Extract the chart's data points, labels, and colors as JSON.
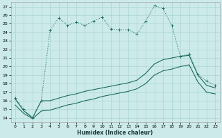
{
  "xlabel": "Humidex (Indice chaleur)",
  "xlim": [
    -0.5,
    23.5
  ],
  "ylim": [
    13.5,
    27.5
  ],
  "yticks": [
    14,
    15,
    16,
    17,
    18,
    19,
    20,
    21,
    22,
    23,
    24,
    25,
    26,
    27
  ],
  "xticks": [
    0,
    1,
    2,
    3,
    4,
    5,
    6,
    7,
    8,
    9,
    10,
    11,
    12,
    13,
    14,
    15,
    16,
    17,
    18,
    19,
    20,
    21,
    22,
    23
  ],
  "bg_color": "#cceaea",
  "grid_color": "#aad4d4",
  "line_color": "#1a6b5a",
  "line1_x": [
    0,
    1,
    2,
    3,
    4,
    5,
    6,
    7,
    8,
    9,
    10,
    11,
    12,
    13,
    14,
    15,
    16,
    17,
    18,
    19,
    20,
    21,
    22,
    23
  ],
  "line1_y": [
    16.3,
    15.0,
    14.0,
    16.0,
    24.2,
    25.7,
    24.8,
    25.2,
    24.8,
    25.3,
    25.8,
    24.4,
    24.3,
    24.3,
    23.8,
    25.3,
    27.1,
    26.8,
    24.8,
    21.2,
    21.5,
    19.1,
    18.3,
    17.8
  ],
  "line2_x": [
    0,
    1,
    2,
    3,
    4,
    5,
    6,
    7,
    8,
    9,
    10,
    11,
    12,
    13,
    14,
    15,
    16,
    17,
    18,
    19,
    20,
    21,
    22,
    23
  ],
  "line2_y": [
    16.2,
    14.8,
    14.0,
    16.0,
    16.0,
    16.3,
    16.6,
    16.8,
    17.1,
    17.3,
    17.5,
    17.7,
    17.9,
    18.1,
    18.4,
    19.2,
    20.3,
    20.8,
    21.0,
    21.2,
    21.3,
    19.0,
    17.8,
    17.5
  ],
  "line3_x": [
    0,
    1,
    2,
    3,
    4,
    5,
    6,
    7,
    8,
    9,
    10,
    11,
    12,
    13,
    14,
    15,
    16,
    17,
    18,
    19,
    20,
    21,
    22,
    23
  ],
  "line3_y": [
    15.5,
    14.5,
    13.9,
    14.8,
    14.9,
    15.2,
    15.5,
    15.7,
    16.0,
    16.2,
    16.5,
    16.7,
    16.9,
    17.1,
    17.4,
    18.0,
    19.0,
    19.5,
    19.7,
    20.0,
    20.2,
    18.2,
    17.0,
    16.8
  ]
}
